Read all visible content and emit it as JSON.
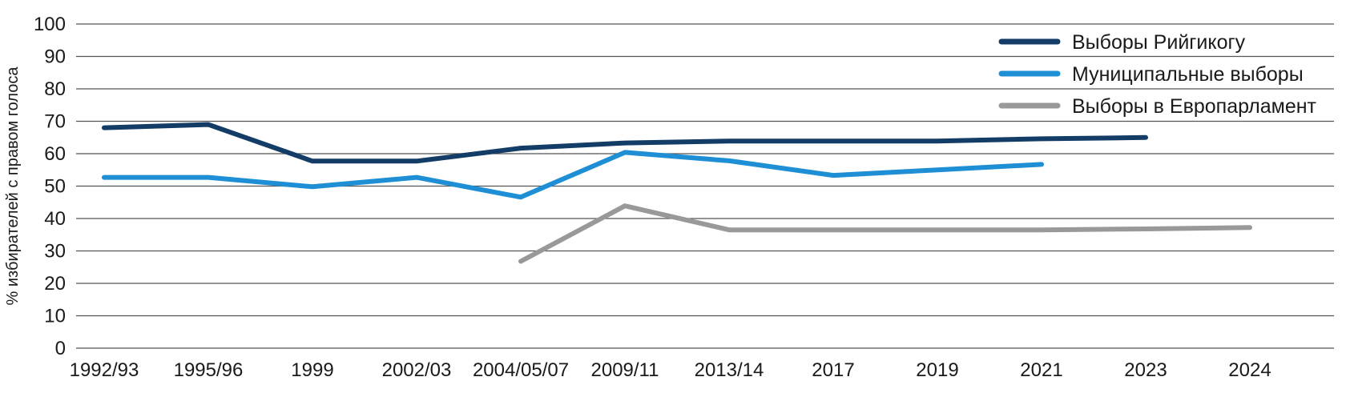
{
  "chart_data": {
    "type": "line",
    "title": "",
    "xlabel": "",
    "ylabel": "% избирателей с правом голоса",
    "categories": [
      "1992/93",
      "1995/96",
      "1999",
      "2002/03",
      "2004/05/07",
      "2009/11",
      "2013/14",
      "2017",
      "2019",
      "2021",
      "2023",
      "2024"
    ],
    "ylim": [
      0,
      100
    ],
    "yticks": [
      0,
      10,
      20,
      30,
      40,
      50,
      60,
      70,
      80,
      90,
      100
    ],
    "grid": true,
    "legend_position": "top-right",
    "series": [
      {
        "name": "Выборы Рийгикогу",
        "color": "#133d66",
        "values": [
          68,
          69,
          57.7,
          57.7,
          61.7,
          63.3,
          63.9,
          63.9,
          63.9,
          64.6,
          65,
          null
        ]
      },
      {
        "name": "Муниципальные выборы",
        "color": "#1e8fd5",
        "values": [
          52.7,
          52.7,
          49.8,
          52.7,
          46.6,
          60.4,
          57.8,
          53.3,
          55,
          56.7,
          null,
          null
        ]
      },
      {
        "name": "Выборы в Европарламент",
        "color": "#999999",
        "values": [
          null,
          null,
          null,
          null,
          26.8,
          43.9,
          36.5,
          36.5,
          36.5,
          36.5,
          36.8,
          37.2
        ]
      }
    ]
  }
}
